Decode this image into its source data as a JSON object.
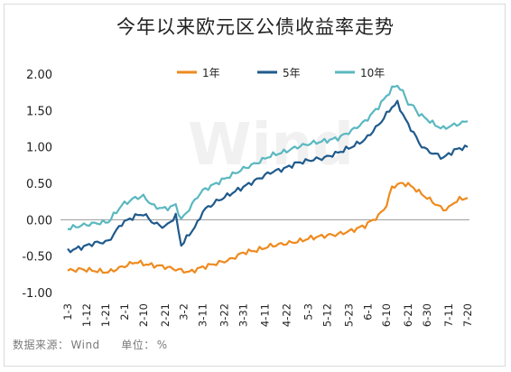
{
  "chart_data": {
    "type": "line",
    "title": "今年以来欧元区公债收益率走势",
    "xlabel": "",
    "ylabel": "",
    "ylim": [
      -1.0,
      2.0
    ],
    "yticks": [
      "2.00",
      "1.50",
      "1.00",
      "0.50",
      "0.00",
      "-0.50",
      "-1.00"
    ],
    "ytick_values": [
      2.0,
      1.5,
      1.0,
      0.5,
      0.0,
      -0.5,
      -1.0
    ],
    "xtick_labels": [
      "1-3",
      "1-12",
      "1-21",
      "2-1",
      "2-10",
      "2-21",
      "3-2",
      "3-11",
      "3-22",
      "3-31",
      "4-11",
      "4-22",
      "5-3",
      "5-12",
      "5-23",
      "6-1",
      "6-10",
      "6-21",
      "6-30",
      "7-11",
      "7-20"
    ],
    "xtick_pos": [
      0,
      7,
      14,
      21,
      28,
      36,
      43,
      50,
      58,
      65,
      73,
      81,
      89,
      96,
      104,
      111,
      118,
      126,
      133,
      141,
      148
    ],
    "legend_position": "top-center",
    "grid": false,
    "watermark": "Wind",
    "series": [
      {
        "name": "1年",
        "color": "#ef8a1e",
        "x": [
          0,
          5,
          10,
          15,
          20,
          25,
          30,
          35,
          40,
          45,
          50,
          55,
          60,
          65,
          70,
          75,
          80,
          85,
          90,
          95,
          100,
          105,
          110,
          115,
          118,
          120,
          122,
          124,
          126,
          128,
          130,
          133,
          136,
          139,
          141,
          143,
          145,
          148
        ],
        "values": [
          -0.7,
          -0.68,
          -0.7,
          -0.72,
          -0.65,
          -0.58,
          -0.62,
          -0.64,
          -0.68,
          -0.72,
          -0.65,
          -0.6,
          -0.55,
          -0.45,
          -0.42,
          -0.36,
          -0.33,
          -0.3,
          -0.25,
          -0.22,
          -0.2,
          -0.15,
          -0.08,
          0.05,
          0.2,
          0.45,
          0.48,
          0.5,
          0.48,
          0.44,
          0.38,
          0.3,
          0.22,
          0.14,
          0.16,
          0.24,
          0.28,
          0.3
        ]
      },
      {
        "name": "5年",
        "color": "#1f5a8c",
        "x": [
          0,
          5,
          10,
          15,
          20,
          25,
          28,
          32,
          36,
          40,
          42,
          45,
          48,
          50,
          55,
          60,
          65,
          70,
          75,
          80,
          85,
          90,
          95,
          100,
          105,
          110,
          115,
          118,
          120,
          122,
          124,
          126,
          128,
          130,
          133,
          136,
          139,
          141,
          143,
          145,
          148
        ],
        "values": [
          -0.43,
          -0.38,
          -0.32,
          -0.3,
          -0.05,
          0.05,
          0.08,
          -0.05,
          -0.1,
          0.05,
          -0.35,
          -0.2,
          -0.05,
          0.12,
          0.25,
          0.35,
          0.45,
          0.55,
          0.65,
          0.7,
          0.78,
          0.82,
          0.85,
          0.92,
          1.0,
          1.1,
          1.3,
          1.45,
          1.55,
          1.6,
          1.45,
          1.3,
          1.2,
          1.05,
          0.95,
          0.9,
          0.85,
          0.9,
          0.95,
          0.98,
          1.0
        ]
      },
      {
        "name": "10年",
        "color": "#5ab8c0",
        "x": [
          0,
          5,
          10,
          15,
          20,
          25,
          28,
          32,
          36,
          40,
          42,
          45,
          48,
          50,
          55,
          60,
          65,
          70,
          75,
          80,
          85,
          90,
          95,
          100,
          105,
          110,
          115,
          118,
          120,
          122,
          124,
          126,
          128,
          130,
          133,
          136,
          139,
          141,
          143,
          145,
          148
        ],
        "values": [
          -0.12,
          -0.08,
          -0.05,
          -0.03,
          0.2,
          0.3,
          0.32,
          0.18,
          0.15,
          0.2,
          0.0,
          0.15,
          0.32,
          0.4,
          0.5,
          0.6,
          0.7,
          0.78,
          0.88,
          0.93,
          1.0,
          1.05,
          1.08,
          1.12,
          1.22,
          1.35,
          1.55,
          1.7,
          1.8,
          1.85,
          1.75,
          1.6,
          1.55,
          1.45,
          1.38,
          1.3,
          1.25,
          1.28,
          1.3,
          1.32,
          1.35
        ]
      }
    ]
  },
  "footer": {
    "source_label": "数据来源：",
    "source_value": "Wind",
    "unit_label": "单位：",
    "unit_value": "%"
  }
}
